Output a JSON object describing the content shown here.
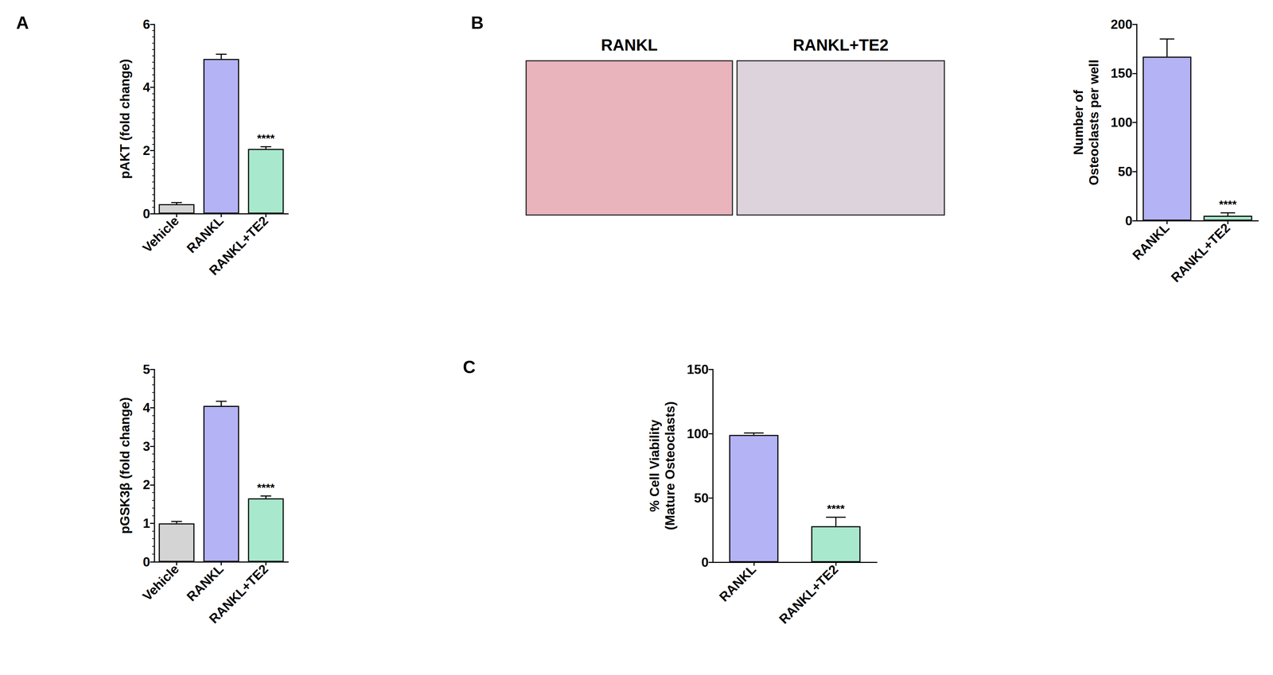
{
  "panel_labels": [
    "A",
    "B",
    "C"
  ],
  "micrographs": {
    "titles": [
      "RANKL",
      "RANKL+TE2"
    ]
  },
  "chart_data": [
    {
      "type": "bar",
      "ylabel": "pAKT (fold change)",
      "categories": [
        "Vehicle",
        "RANKL",
        "RANKL+TE2"
      ],
      "values": [
        0.3,
        4.9,
        2.05
      ],
      "errors": [
        0.05,
        0.15,
        0.07
      ],
      "colors": [
        "#d4d4d4",
        "#b3b3f5",
        "#a8e8cc"
      ],
      "ylim": [
        0,
        6
      ],
      "yticks": [
        0,
        2,
        4,
        6
      ],
      "grid": false,
      "annotations": [
        {
          "category": "RANKL+TE2",
          "text": "****"
        }
      ]
    },
    {
      "type": "bar",
      "ylabel": "pGSK3β (fold change)",
      "categories": [
        "Vehicle",
        "RANKL",
        "RANKL+TE2"
      ],
      "values": [
        1.0,
        4.05,
        1.65
      ],
      "errors": [
        0.05,
        0.12,
        0.06
      ],
      "colors": [
        "#d4d4d4",
        "#b3b3f5",
        "#a8e8cc"
      ],
      "ylim": [
        0,
        5
      ],
      "yticks": [
        0,
        1,
        2,
        3,
        4,
        5
      ],
      "grid": false,
      "annotations": [
        {
          "category": "RANKL+TE2",
          "text": "****"
        }
      ]
    },
    {
      "type": "bar",
      "ylabel": "Number of\nOsteoclasts per well",
      "categories": [
        "RANKL",
        "RANKL+TE2"
      ],
      "values": [
        167,
        5
      ],
      "errors": [
        18,
        3
      ],
      "colors": [
        "#b3b3f5",
        "#a8e8cc"
      ],
      "ylim": [
        0,
        200
      ],
      "yticks": [
        0,
        50,
        100,
        150,
        200
      ],
      "grid": false,
      "annotations": [
        {
          "category": "RANKL+TE2",
          "text": "****"
        }
      ]
    },
    {
      "type": "bar",
      "ylabel": "% Cell Viability\n(Mature Osteoclasts)",
      "categories": [
        "RANKL",
        "RANKL+TE2"
      ],
      "values": [
        99,
        28
      ],
      "errors": [
        1.5,
        7
      ],
      "colors": [
        "#b3b3f5",
        "#a8e8cc"
      ],
      "ylim": [
        0,
        150
      ],
      "yticks": [
        0,
        50,
        100,
        150
      ],
      "grid": false,
      "annotations": [
        {
          "category": "RANKL+TE2",
          "text": "****"
        }
      ]
    }
  ]
}
